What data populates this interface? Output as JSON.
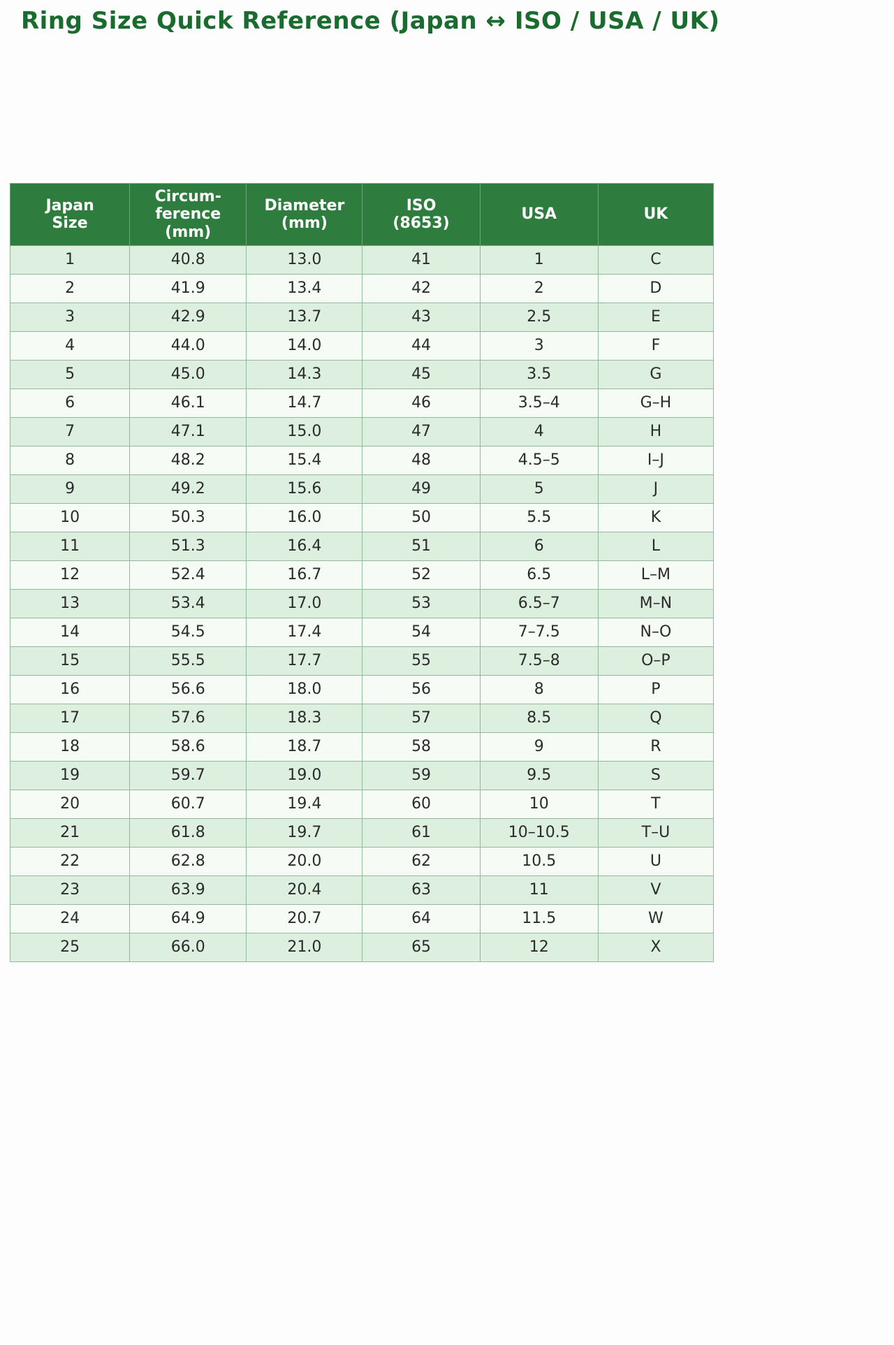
{
  "page": {
    "title": "Ring Size Quick Reference (Japan ↔ ISO / USA / UK)"
  },
  "table": {
    "headers": [
      "Japan\nSize",
      "Circum-\nference\n(mm)",
      "Diameter\n(mm)",
      "ISO\n(8653)",
      "USA",
      "UK"
    ],
    "rows": [
      [
        "1",
        "40.8",
        "13.0",
        "41",
        "1",
        "C"
      ],
      [
        "2",
        "41.9",
        "13.4",
        "42",
        "2",
        "D"
      ],
      [
        "3",
        "42.9",
        "13.7",
        "43",
        "2.5",
        "E"
      ],
      [
        "4",
        "44.0",
        "14.0",
        "44",
        "3",
        "F"
      ],
      [
        "5",
        "45.0",
        "14.3",
        "45",
        "3.5",
        "G"
      ],
      [
        "6",
        "46.1",
        "14.7",
        "46",
        "3.5–4",
        "G–H"
      ],
      [
        "7",
        "47.1",
        "15.0",
        "47",
        "4",
        "H"
      ],
      [
        "8",
        "48.2",
        "15.4",
        "48",
        "4.5–5",
        "I–J"
      ],
      [
        "9",
        "49.2",
        "15.6",
        "49",
        "5",
        "J"
      ],
      [
        "10",
        "50.3",
        "16.0",
        "50",
        "5.5",
        "K"
      ],
      [
        "11",
        "51.3",
        "16.4",
        "51",
        "6",
        "L"
      ],
      [
        "12",
        "52.4",
        "16.7",
        "52",
        "6.5",
        "L–M"
      ],
      [
        "13",
        "53.4",
        "17.0",
        "53",
        "6.5–7",
        "M–N"
      ],
      [
        "14",
        "54.5",
        "17.4",
        "54",
        "7–7.5",
        "N–O"
      ],
      [
        "15",
        "55.5",
        "17.7",
        "55",
        "7.5–8",
        "O–P"
      ],
      [
        "16",
        "56.6",
        "18.0",
        "56",
        "8",
        "P"
      ],
      [
        "17",
        "57.6",
        "18.3",
        "57",
        "8.5",
        "Q"
      ],
      [
        "18",
        "58.6",
        "18.7",
        "58",
        "9",
        "R"
      ],
      [
        "19",
        "59.7",
        "19.0",
        "59",
        "9.5",
        "S"
      ],
      [
        "20",
        "60.7",
        "19.4",
        "60",
        "10",
        "T"
      ],
      [
        "21",
        "61.8",
        "19.7",
        "61",
        "10–10.5",
        "T–U"
      ],
      [
        "22",
        "62.8",
        "20.0",
        "62",
        "10.5",
        "U"
      ],
      [
        "23",
        "63.9",
        "20.4",
        "63",
        "11",
        "V"
      ],
      [
        "24",
        "64.9",
        "20.7",
        "64",
        "11.5",
        "W"
      ],
      [
        "25",
        "66.0",
        "21.0",
        "65",
        "12",
        "X"
      ]
    ]
  },
  "colors": {
    "title_green": "#1a6b2e",
    "header_bg": "#2e7d3e",
    "row_stripe_green": "#ddefdf",
    "row_stripe_light": "#f6fbf6",
    "border_green": "#8fb998"
  }
}
